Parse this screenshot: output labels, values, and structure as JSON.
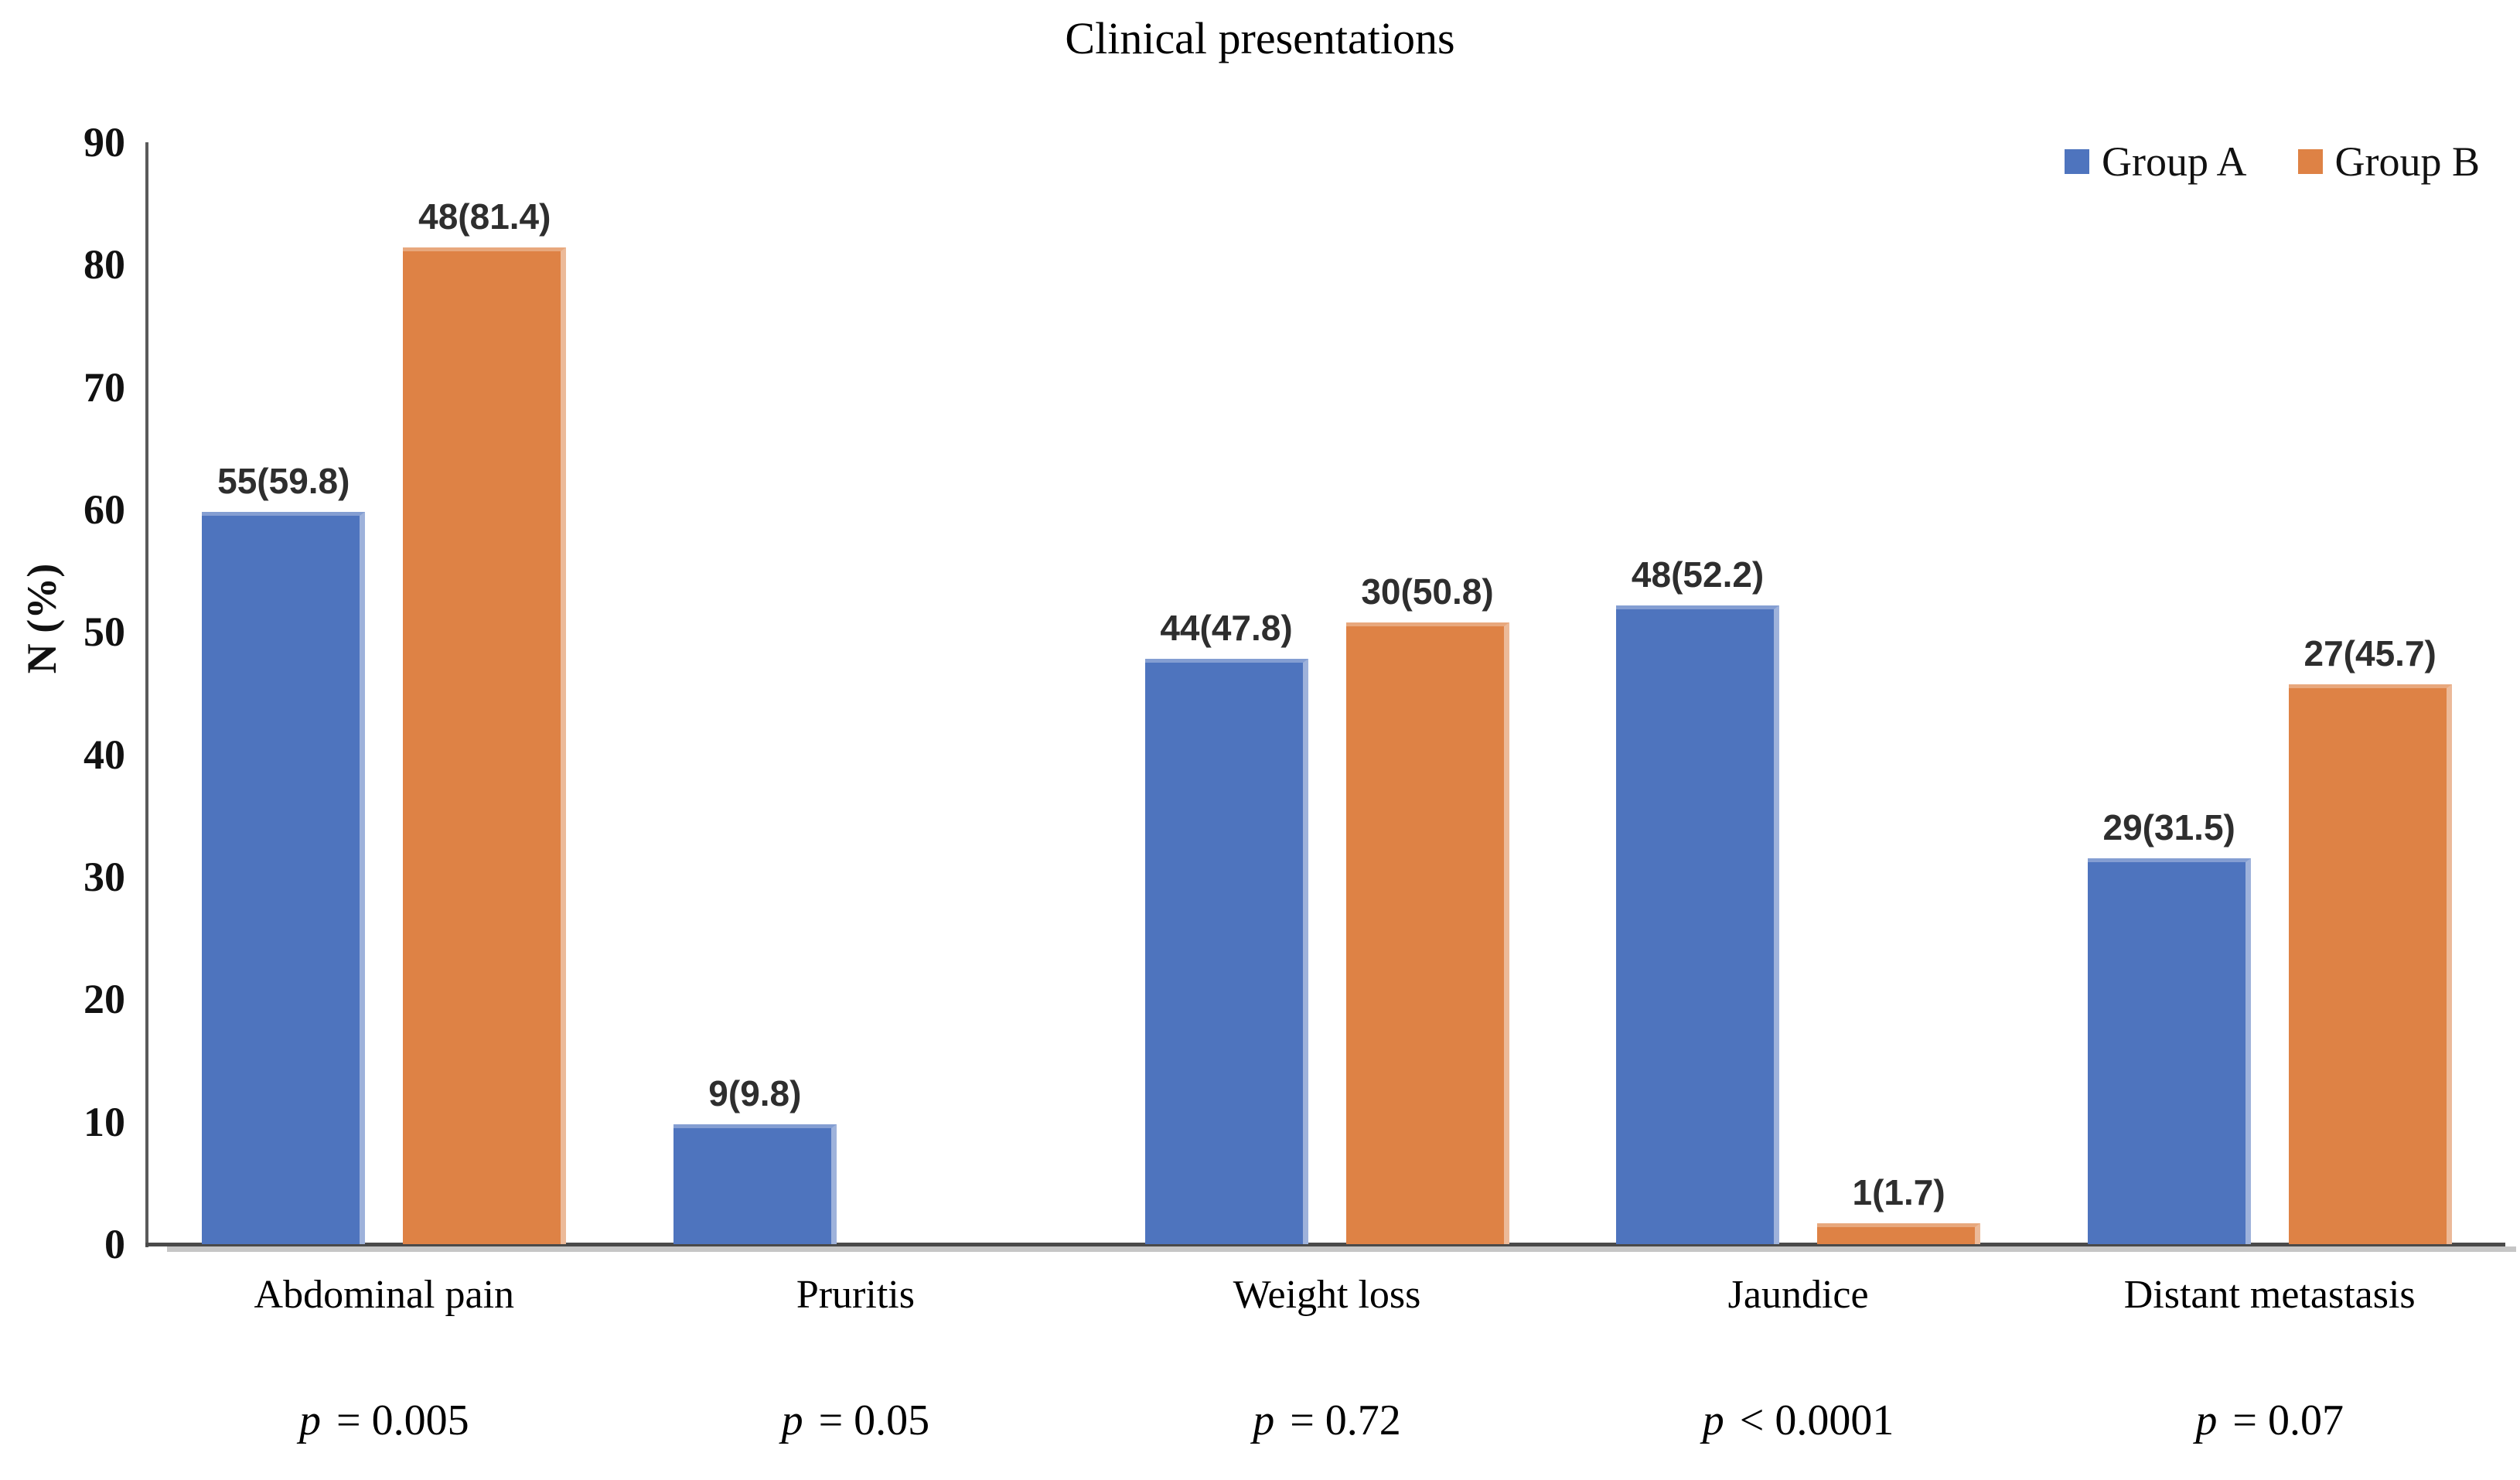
{
  "title": "Clinical presentations",
  "y_axis_title": "N (%)",
  "chart_data": {
    "type": "bar",
    "title": "Clinical presentations",
    "xlabel": "",
    "ylabel": "N (%)",
    "ylim": [
      0,
      90
    ],
    "yticks": [
      0,
      10,
      20,
      30,
      40,
      50,
      60,
      70,
      80,
      90
    ],
    "grid": false,
    "legend_position": "top-right",
    "categories": [
      "Abdominal pain",
      "Pruritis",
      "Weight loss",
      "Jaundice",
      "Distant metastasis"
    ],
    "series": [
      {
        "name": "Group A",
        "color": "#4E74BE",
        "counts": [
          55,
          9,
          44,
          48,
          29
        ],
        "values": [
          59.8,
          9.8,
          47.8,
          52.2,
          31.5
        ],
        "labels": [
          "55(59.8)",
          "9(9.8)",
          "44(47.8)",
          "48(52.2)",
          "29(31.5)"
        ]
      },
      {
        "name": "Group B",
        "color": "#DE8245",
        "counts": [
          48,
          null,
          30,
          1,
          27
        ],
        "values": [
          81.4,
          null,
          50.8,
          1.7,
          45.7
        ],
        "labels": [
          "48(81.4)",
          null,
          "30(50.8)",
          "1(1.7)",
          "27(45.7)"
        ]
      }
    ],
    "p_values": [
      "p = 0.005",
      "p = 0.05",
      "p = 0.72",
      "p < 0.0001",
      "p = 0.07"
    ]
  }
}
